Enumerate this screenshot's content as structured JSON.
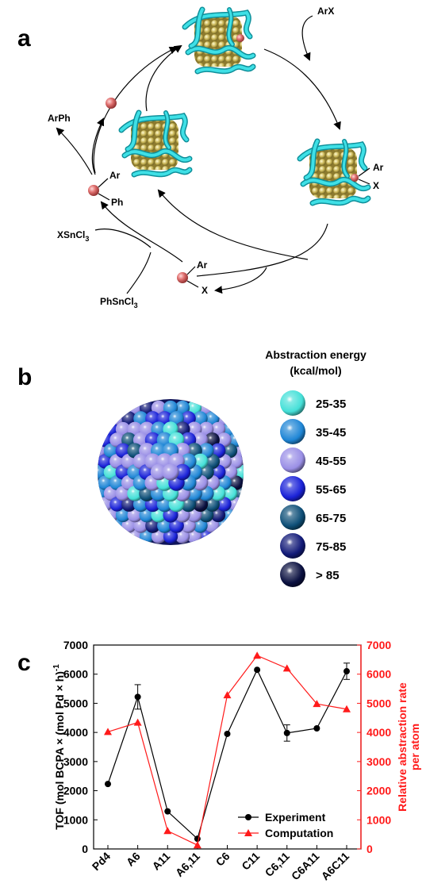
{
  "panels": {
    "a": "a",
    "b": "b",
    "c": "c"
  },
  "scheme": {
    "arx": "ArX",
    "ar": "Ar",
    "x": "X",
    "ph": "Ph",
    "arph": "ArPh",
    "xsncl": "XSnCl",
    "phsncl": "PhSnCl",
    "sub3": "3"
  },
  "legend_b": {
    "title_line1": "Abstraction energy",
    "title_line2": "(kcal/mol)",
    "ranges": [
      {
        "label": "25-35",
        "color": "#45e0d8"
      },
      {
        "label": "35-45",
        "color": "#1f86d6"
      },
      {
        "label": "45-55",
        "color": "#9a8fe6"
      },
      {
        "label": "55-65",
        "color": "#1a22d8"
      },
      {
        "label": "65-75",
        "color": "#0e4f78"
      },
      {
        "label": "75-85",
        "color": "#121a78"
      },
      {
        "label": "> 85",
        "color": "#0a1040"
      }
    ]
  },
  "chart_data": {
    "type": "line",
    "categories": [
      "Pd4",
      "A6",
      "A11",
      "A6,11",
      "C6",
      "C11",
      "C6,11",
      "C6A11",
      "A6C11"
    ],
    "ylabel": "TOF (mol BCPA × (mol Pd × h)",
    "ylabel_sup": "-1",
    "y2label_line1": "Relative abstraction rate",
    "y2label_line2": "per atom",
    "ylim": [
      0,
      7000
    ],
    "y2lim": [
      0,
      7000
    ],
    "yticks": [
      "0",
      "1000",
      "2000",
      "3000",
      "4000",
      "5000",
      "6000",
      "7000"
    ],
    "series": [
      {
        "name": "Experiment",
        "color": "#000000",
        "marker": "circle",
        "values": [
          2230,
          5220,
          1290,
          350,
          3950,
          6150,
          3980,
          4140,
          6100
        ],
        "errors": [
          0,
          420,
          0,
          0,
          0,
          0,
          280,
          0,
          280
        ]
      },
      {
        "name": "Computation",
        "color": "#ff1a1a",
        "marker": "triangle",
        "axis": "right",
        "values": [
          4020,
          4340,
          620,
          130,
          5280,
          6640,
          6200,
          4980,
          4800
        ]
      }
    ]
  }
}
